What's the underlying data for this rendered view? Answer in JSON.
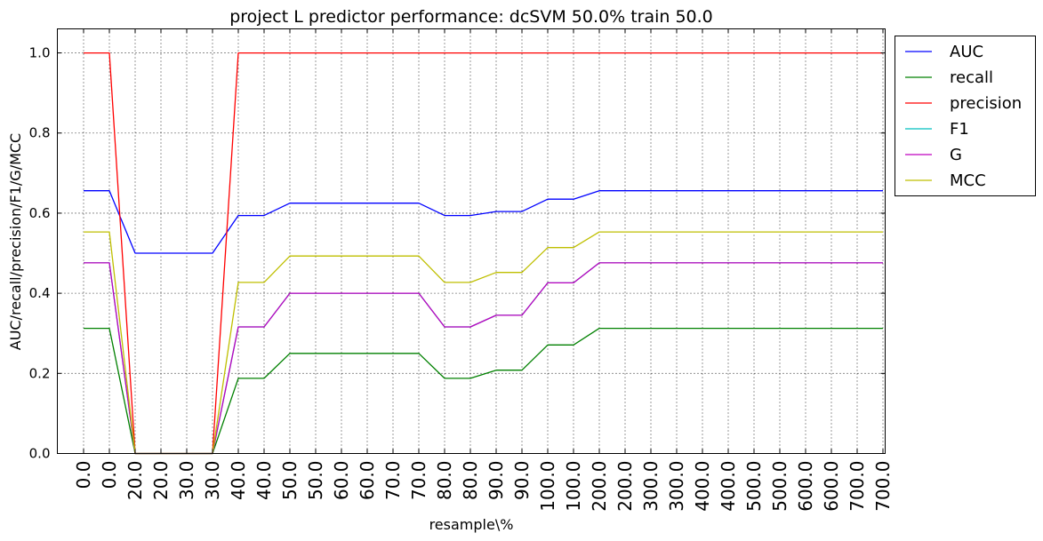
{
  "chart_data": {
    "type": "line",
    "title": "project L predictor performance: dcSVM 50.0% train 50.0",
    "xlabel": "resample\\%",
    "ylabel": "AUC/recall/precision/F1/G/MCC",
    "ylim": [
      0,
      1.06
    ],
    "yticks": [
      "0.0",
      "0.2",
      "0.4",
      "0.6",
      "0.8",
      "1.0"
    ],
    "grid": true,
    "legend_position": "outside-right",
    "categories": [
      "0.0",
      "0.0",
      "20.0",
      "20.0",
      "30.0",
      "30.0",
      "40.0",
      "40.0",
      "50.0",
      "50.0",
      "60.0",
      "60.0",
      "70.0",
      "70.0",
      "80.0",
      "80.0",
      "90.0",
      "90.0",
      "100.0",
      "100.0",
      "200.0",
      "200.0",
      "300.0",
      "300.0",
      "400.0",
      "400.0",
      "500.0",
      "500.0",
      "600.0",
      "600.0",
      "700.0",
      "700.0"
    ],
    "series": [
      {
        "name": "AUC",
        "color": "#0000ff",
        "values": [
          0.656,
          0.656,
          0.5,
          0.5,
          0.5,
          0.5,
          0.594,
          0.594,
          0.625,
          0.625,
          0.625,
          0.625,
          0.625,
          0.625,
          0.594,
          0.594,
          0.604,
          0.604,
          0.635,
          0.635,
          0.656,
          0.656,
          0.656,
          0.656,
          0.656,
          0.656,
          0.656,
          0.656,
          0.656,
          0.656,
          0.656,
          0.656
        ]
      },
      {
        "name": "recall",
        "color": "#008000",
        "values": [
          0.3125,
          0.3125,
          0,
          0,
          0,
          0,
          0.1875,
          0.1875,
          0.25,
          0.25,
          0.25,
          0.25,
          0.25,
          0.25,
          0.1875,
          0.1875,
          0.208,
          0.208,
          0.271,
          0.271,
          0.3125,
          0.3125,
          0.3125,
          0.3125,
          0.3125,
          0.3125,
          0.3125,
          0.3125,
          0.3125,
          0.3125,
          0.3125,
          0.3125
        ]
      },
      {
        "name": "precision",
        "color": "#ff0000",
        "values": [
          1,
          1,
          0,
          0,
          0,
          0,
          1,
          1,
          1,
          1,
          1,
          1,
          1,
          1,
          1,
          1,
          1,
          1,
          1,
          1,
          1,
          1,
          1,
          1,
          1,
          1,
          1,
          1,
          1,
          1,
          1,
          1
        ]
      },
      {
        "name": "F1",
        "color": "#00bfbf",
        "values": [
          0.476,
          0.476,
          0,
          0,
          0,
          0,
          0.316,
          0.316,
          0.4,
          0.4,
          0.4,
          0.4,
          0.4,
          0.4,
          0.316,
          0.316,
          0.345,
          0.345,
          0.426,
          0.426,
          0.476,
          0.476,
          0.476,
          0.476,
          0.476,
          0.476,
          0.476,
          0.476,
          0.476,
          0.476,
          0.476,
          0.476
        ]
      },
      {
        "name": "G",
        "color": "#bf00bf",
        "values": [
          0.476,
          0.476,
          0,
          0,
          0,
          0,
          0.316,
          0.316,
          0.4,
          0.4,
          0.4,
          0.4,
          0.4,
          0.4,
          0.316,
          0.316,
          0.345,
          0.345,
          0.426,
          0.426,
          0.476,
          0.476,
          0.476,
          0.476,
          0.476,
          0.476,
          0.476,
          0.476,
          0.476,
          0.476,
          0.476,
          0.476
        ]
      },
      {
        "name": "MCC",
        "color": "#bfbf00",
        "values": [
          0.553,
          0.553,
          0,
          0,
          0,
          0,
          0.427,
          0.427,
          0.493,
          0.493,
          0.493,
          0.493,
          0.493,
          0.493,
          0.427,
          0.427,
          0.452,
          0.452,
          0.514,
          0.514,
          0.553,
          0.553,
          0.553,
          0.553,
          0.553,
          0.553,
          0.553,
          0.553,
          0.553,
          0.553,
          0.553,
          0.553
        ]
      }
    ]
  }
}
